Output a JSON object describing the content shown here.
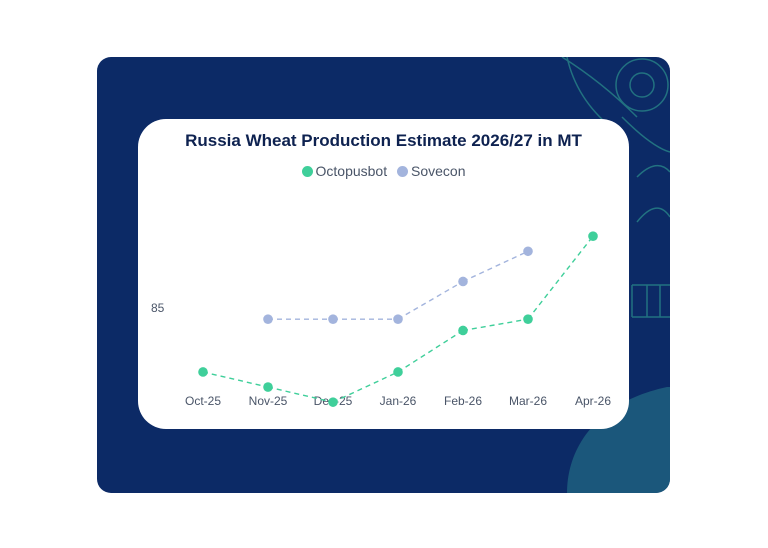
{
  "chart_data": {
    "type": "line",
    "title": "Russia Wheat Production Estimate 2026/27 in MT",
    "categories": [
      "Oct-25",
      "Nov-25",
      "Dec-25",
      "Jan-26",
      "Feb-26",
      "Mar-26",
      "Apr-26"
    ],
    "y_ticks": [
      85
    ],
    "ylim": [
      82,
      89
    ],
    "legend_position": "top",
    "grid": false,
    "series": [
      {
        "name": "Octopusbot",
        "color": "#3fcf9a",
        "line_style": "dashed",
        "values": [
          83.3,
          82.9,
          82.5,
          83.3,
          84.4,
          84.7,
          86.9
        ]
      },
      {
        "name": "Sovecon",
        "color": "#a3b4dd",
        "line_style": "dashed",
        "values": [
          null,
          84.7,
          84.7,
          84.7,
          85.7,
          86.5,
          null
        ]
      }
    ]
  },
  "colors": {
    "background_panel": "#0c2a66",
    "card": "#ffffff",
    "title": "#0e2250"
  }
}
